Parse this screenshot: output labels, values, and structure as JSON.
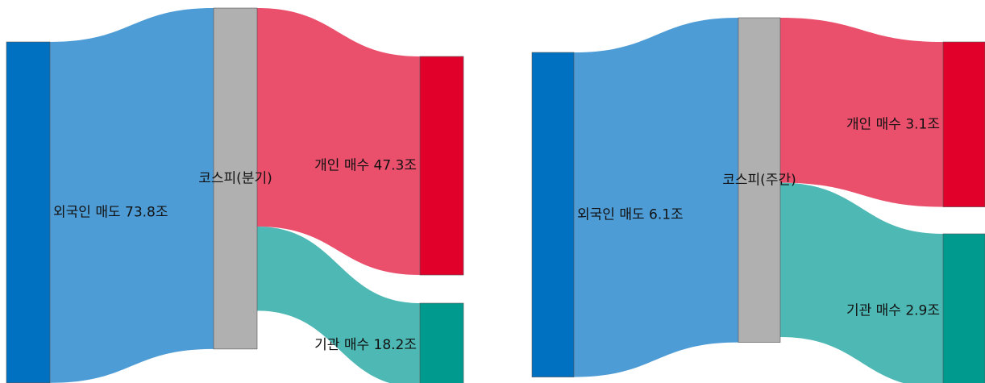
{
  "chart_data": [
    {
      "type": "sankey",
      "nodes": [
        {
          "label": "외국인 매도 73.8조",
          "color": "#0070c0"
        },
        {
          "label": "코스피(분기)",
          "color": "#b0b0b0"
        },
        {
          "label": "개인 매수 47.3조",
          "color": "#e0002a"
        },
        {
          "label": "기관 매수 18.2조",
          "color": "#009a8e"
        }
      ],
      "links": [
        {
          "source": 0,
          "target": 1,
          "value": 73.8,
          "color": "#4e9cd6"
        },
        {
          "source": 1,
          "target": 2,
          "value": 47.3,
          "color": "#ea4f6c"
        },
        {
          "source": 1,
          "target": 3,
          "value": 18.2,
          "color": "#4db8b4"
        }
      ]
    },
    {
      "type": "sankey",
      "nodes": [
        {
          "label": "외국인 매도 6.1조",
          "color": "#0070c0"
        },
        {
          "label": "코스피(주간)",
          "color": "#b0b0b0"
        },
        {
          "label": "개인 매수 3.1조",
          "color": "#e0002a"
        },
        {
          "label": "기관 매수 2.9조",
          "color": "#009a8e"
        }
      ],
      "links": [
        {
          "source": 0,
          "target": 1,
          "value": 6.1,
          "color": "#4e9cd6"
        },
        {
          "source": 1,
          "target": 2,
          "value": 3.1,
          "color": "#ea4f6c"
        },
        {
          "source": 1,
          "target": 3,
          "value": 2.9,
          "color": "#4db8b4"
        }
      ]
    }
  ]
}
